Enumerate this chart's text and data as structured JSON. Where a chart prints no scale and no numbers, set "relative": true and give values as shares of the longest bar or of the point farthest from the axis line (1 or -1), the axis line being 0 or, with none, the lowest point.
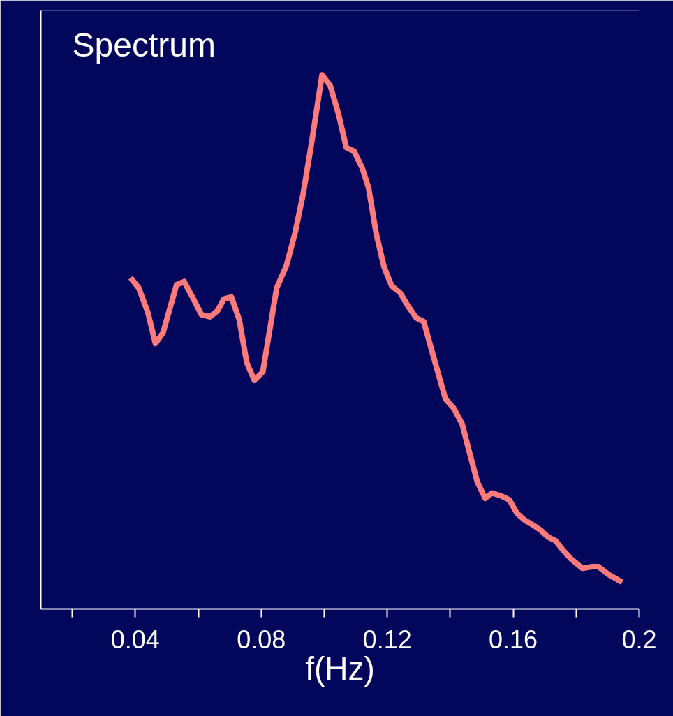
{
  "chart_data": {
    "type": "line",
    "title": "Spectrum",
    "xlabel": "f(Hz)",
    "relative": true,
    "color": "#ff7a7a",
    "marker": "none",
    "line_style": "solid",
    "grid": false,
    "xlim": [
      0.01,
      0.2
    ],
    "xticks": [
      {
        "value": 0.02,
        "label": null
      },
      {
        "value": 0.04,
        "label": "0.04"
      },
      {
        "value": 0.06,
        "label": null
      },
      {
        "value": 0.08,
        "label": "0.08"
      },
      {
        "value": 0.1,
        "label": null
      },
      {
        "value": 0.12,
        "label": "0.12"
      },
      {
        "value": 0.14,
        "label": null
      },
      {
        "value": 0.16,
        "label": "0.16"
      },
      {
        "value": 0.18,
        "label": null
      },
      {
        "value": 0.2,
        "label": "0.2"
      }
    ],
    "x": [
      0.0385,
      0.0411,
      0.044,
      0.0464,
      0.0488,
      0.0531,
      0.0555,
      0.0584,
      0.061,
      0.0637,
      0.0661,
      0.0681,
      0.0705,
      0.073,
      0.0754,
      0.0778,
      0.0805,
      0.0849,
      0.088,
      0.0907,
      0.0933,
      0.0958,
      0.0993,
      0.1019,
      0.1046,
      0.107,
      0.1095,
      0.1121,
      0.1141,
      0.1165,
      0.119,
      0.1214,
      0.1241,
      0.1265,
      0.1292,
      0.1316,
      0.134,
      0.1362,
      0.1385,
      0.1411,
      0.1438,
      0.1462,
      0.1486,
      0.1511,
      0.1533,
      0.1564,
      0.1588,
      0.1612,
      0.1637,
      0.1663,
      0.1688,
      0.1712,
      0.1734,
      0.1758,
      0.1783,
      0.182,
      0.1851,
      0.1871,
      0.1904,
      0.1946
    ],
    "values": [
      0.62,
      0.601,
      0.555,
      0.497,
      0.517,
      0.607,
      0.613,
      0.581,
      0.551,
      0.547,
      0.558,
      0.58,
      0.584,
      0.542,
      0.461,
      0.428,
      0.444,
      0.601,
      0.643,
      0.703,
      0.777,
      0.866,
      1,
      0.98,
      0.925,
      0.864,
      0.857,
      0.825,
      0.788,
      0.703,
      0.64,
      0.605,
      0.592,
      0.568,
      0.545,
      0.538,
      0.487,
      0.441,
      0.393,
      0.376,
      0.346,
      0.291,
      0.238,
      0.207,
      0.217,
      0.211,
      0.204,
      0.179,
      0.166,
      0.157,
      0.147,
      0.134,
      0.128,
      0.11,
      0.094,
      0.076,
      0.079,
      0.079,
      0.064,
      0.05
    ]
  }
}
